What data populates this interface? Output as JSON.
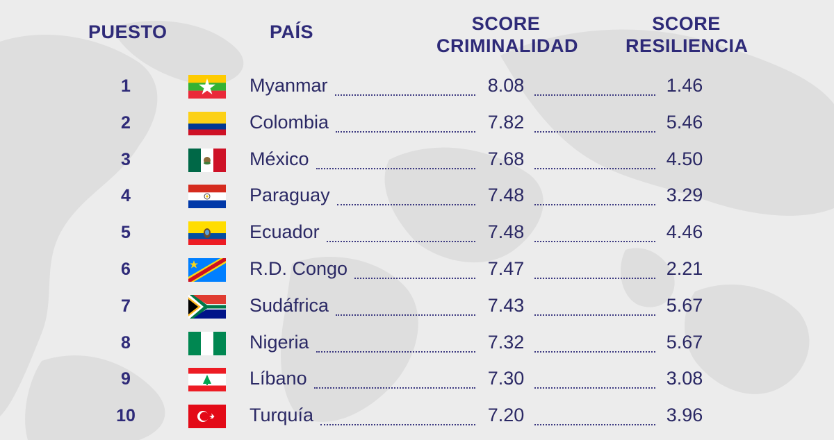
{
  "headers": {
    "rank": "PUESTO",
    "country": "PAÍS",
    "crime_line1": "SCORE",
    "crime_line2": "CRIMINALIDAD",
    "res_line1": "SCORE",
    "res_line2": "RESILIENCIA"
  },
  "colors": {
    "header": "#2e2a78",
    "text": "#2a2864",
    "background": "#ececec",
    "map": "#dcdcdc"
  },
  "chart_data": {
    "type": "table",
    "columns": [
      "PUESTO",
      "PAÍS",
      "SCORE CRIMINALIDAD",
      "SCORE RESILIENCIA"
    ],
    "rows": [
      {
        "rank": "1",
        "country": "Myanmar",
        "flag": "myanmar-flag",
        "crime": "8.08",
        "resilience": "1.46"
      },
      {
        "rank": "2",
        "country": "Colombia",
        "flag": "colombia-flag",
        "crime": "7.82",
        "resilience": "5.46"
      },
      {
        "rank": "3",
        "country": "México",
        "flag": "mexico-flag",
        "crime": "7.68",
        "resilience": "4.50"
      },
      {
        "rank": "4",
        "country": "Paraguay",
        "flag": "paraguay-flag",
        "crime": "7.48",
        "resilience": "3.29"
      },
      {
        "rank": "5",
        "country": "Ecuador",
        "flag": "ecuador-flag",
        "crime": "7.48",
        "resilience": "4.46"
      },
      {
        "rank": "6",
        "country": "R.D. Congo",
        "flag": "dr-congo-flag",
        "crime": "7.47",
        "resilience": "2.21"
      },
      {
        "rank": "7",
        "country": "Sudáfrica",
        "flag": "south-africa-flag",
        "crime": "7.43",
        "resilience": "5.67"
      },
      {
        "rank": "8",
        "country": "Nigeria",
        "flag": "nigeria-flag",
        "crime": "7.32",
        "resilience": "5.67"
      },
      {
        "rank": "9",
        "country": "Líbano",
        "flag": "lebanon-flag",
        "crime": "7.30",
        "resilience": "3.08"
      },
      {
        "rank": "10",
        "country": "Turquía",
        "flag": "turkey-flag",
        "crime": "7.20",
        "resilience": "3.96"
      }
    ]
  }
}
